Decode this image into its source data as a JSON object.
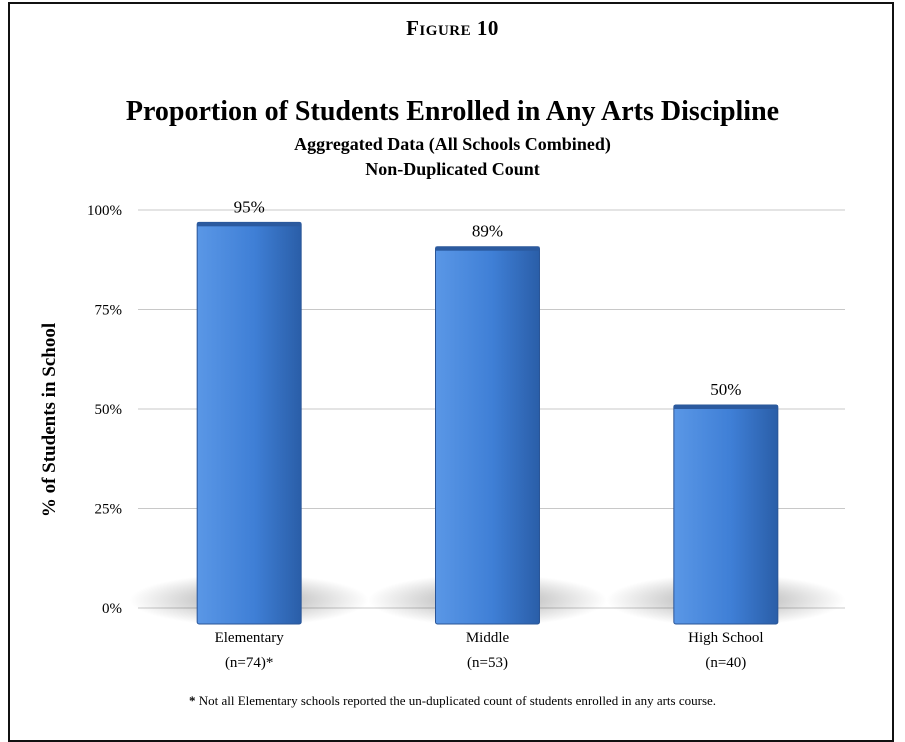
{
  "figure_label": "Figure 10",
  "footnote": "Not all Elementary schools reported the un-duplicated count of students enrolled in any arts course.",
  "footnote_marker": "*",
  "colors": {
    "bar": "#3f7fd6",
    "bar_dark": "#2a5ea8",
    "grid": "#c8c8c8"
  },
  "chart_data": {
    "type": "bar",
    "title": "Proportion of Students Enrolled in Any Arts Discipline",
    "subtitle": [
      "Aggregated Data (All Schools Combined)",
      "Non-Duplicated Count"
    ],
    "xlabel": "",
    "ylabel": "% of Students in School",
    "ylim": [
      0,
      100
    ],
    "yticks": [
      "0%",
      "25%",
      "50%",
      "75%",
      "100%"
    ],
    "categories": [
      "Elementary",
      "Middle",
      "High School"
    ],
    "category_notes": [
      "(n=74)*",
      "(n=53)",
      "(n=40)"
    ],
    "values": [
      95,
      89,
      50
    ],
    "data_labels": [
      "95%",
      "89%",
      "50%"
    ],
    "grid": true,
    "legend": "none"
  }
}
